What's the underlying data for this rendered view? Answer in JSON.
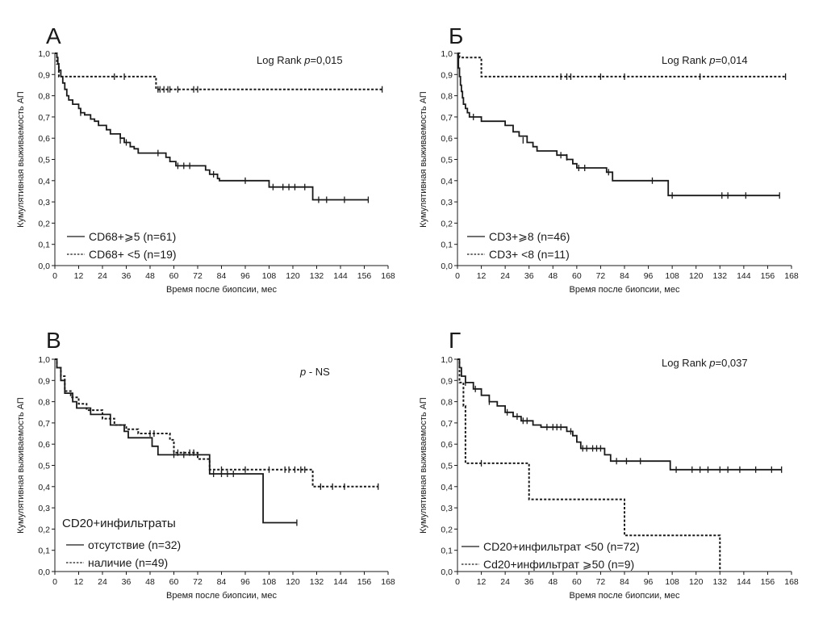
{
  "chart_data": [
    {
      "type": "line",
      "panel_label": "А",
      "title": "",
      "xlabel": "Время после биопсии, мес",
      "ylabel": "Кумулятивная выживаемость АП",
      "xlim": [
        0,
        168
      ],
      "ylim": [
        0,
        1
      ],
      "x_ticks": [
        "0",
        "12",
        "24",
        "36",
        "48",
        "60",
        "72",
        "84",
        "96",
        "108",
        "120",
        "132",
        "144",
        "156",
        "168"
      ],
      "y_ticks": [
        "0,0",
        "0,1",
        "0,2",
        "0,3",
        "0,4",
        "0,5",
        "0,6",
        "0,7",
        "0,8",
        "0,9",
        "1,0"
      ],
      "annotation": "Log Rank p=0,015",
      "grid": false,
      "legend_position": "bottom-left",
      "legend_heading": "",
      "series": [
        {
          "name": "CD68+⩾5 (n=61)",
          "style": "solid",
          "steps": [
            [
              0,
              1.0
            ],
            [
              1,
              0.98
            ],
            [
              1.5,
              0.95
            ],
            [
              2,
              0.92
            ],
            [
              3,
              0.89
            ],
            [
              4,
              0.86
            ],
            [
              5,
              0.83
            ],
            [
              6,
              0.8
            ],
            [
              7,
              0.78
            ],
            [
              9,
              0.76
            ],
            [
              12,
              0.74
            ],
            [
              13,
              0.72
            ],
            [
              15,
              0.71
            ],
            [
              18,
              0.69
            ],
            [
              20,
              0.68
            ],
            [
              22,
              0.66
            ],
            [
              26,
              0.64
            ],
            [
              28,
              0.62
            ],
            [
              33,
              0.6
            ],
            [
              35,
              0.58
            ],
            [
              38,
              0.56
            ],
            [
              40,
              0.55
            ],
            [
              42,
              0.53
            ],
            [
              56,
              0.51
            ],
            [
              58,
              0.49
            ],
            [
              61,
              0.47
            ],
            [
              76,
              0.45
            ],
            [
              78,
              0.43
            ],
            [
              82,
              0.41
            ],
            [
              83,
              0.4
            ],
            [
              108,
              0.37
            ],
            [
              130,
              0.31
            ],
            [
              158,
              0.31
            ]
          ],
          "censors": [
            [
              13,
              0.72
            ],
            [
              33,
              0.59
            ],
            [
              36,
              0.58
            ],
            [
              52,
              0.53
            ],
            [
              62,
              0.47
            ],
            [
              65,
              0.47
            ],
            [
              68,
              0.47
            ],
            [
              80,
              0.43
            ],
            [
              96,
              0.4
            ],
            [
              110,
              0.37
            ],
            [
              115,
              0.37
            ],
            [
              118,
              0.37
            ],
            [
              121,
              0.37
            ],
            [
              126,
              0.37
            ],
            [
              133,
              0.31
            ],
            [
              137,
              0.31
            ],
            [
              146,
              0.31
            ],
            [
              158,
              0.31
            ]
          ]
        },
        {
          "name": "CD68+ <5 (n=19)",
          "style": "dashed",
          "steps": [
            [
              0,
              1.0
            ],
            [
              1,
              0.95
            ],
            [
              2,
              0.89
            ],
            [
              51,
              0.83
            ],
            [
              165,
              0.83
            ]
          ],
          "censors": [
            [
              30,
              0.89
            ],
            [
              35,
              0.89
            ],
            [
              52,
              0.83
            ],
            [
              53,
              0.83
            ],
            [
              55,
              0.83
            ],
            [
              57,
              0.83
            ],
            [
              58,
              0.83
            ],
            [
              62,
              0.83
            ],
            [
              70,
              0.83
            ],
            [
              72,
              0.83
            ],
            [
              165,
              0.83
            ]
          ]
        }
      ]
    },
    {
      "type": "line",
      "panel_label": "Б",
      "title": "",
      "xlabel": "Время после биопсии, мес",
      "ylabel": "Кумулятивная выживаемость АП",
      "xlim": [
        0,
        168
      ],
      "ylim": [
        0,
        1
      ],
      "x_ticks": [
        "0",
        "12",
        "24",
        "36",
        "48",
        "60",
        "72",
        "84",
        "96",
        "108",
        "120",
        "132",
        "144",
        "156",
        "168"
      ],
      "y_ticks": [
        "0,0",
        "0,1",
        "0,2",
        "0,3",
        "0,4",
        "0,5",
        "0,6",
        "0,7",
        "0,8",
        "0,9",
        "1,0"
      ],
      "annotation": "Log Rank p=0,014",
      "grid": false,
      "legend_position": "bottom-left",
      "legend_heading": "",
      "series": [
        {
          "name": "CD3+⩾8 (n=46)",
          "style": "solid",
          "steps": [
            [
              0,
              1.0
            ],
            [
              0.5,
              0.93
            ],
            [
              1,
              0.89
            ],
            [
              1.5,
              0.85
            ],
            [
              2,
              0.82
            ],
            [
              2.5,
              0.79
            ],
            [
              3,
              0.76
            ],
            [
              4,
              0.74
            ],
            [
              5,
              0.72
            ],
            [
              6,
              0.7
            ],
            [
              12,
              0.68
            ],
            [
              24,
              0.66
            ],
            [
              28,
              0.63
            ],
            [
              31,
              0.61
            ],
            [
              35,
              0.58
            ],
            [
              38,
              0.56
            ],
            [
              40,
              0.54
            ],
            [
              50,
              0.52
            ],
            [
              55,
              0.5
            ],
            [
              58,
              0.48
            ],
            [
              60,
              0.46
            ],
            [
              75,
              0.44
            ],
            [
              78,
              0.4
            ],
            [
              106,
              0.33
            ],
            [
              162,
              0.33
            ]
          ],
          "censors": [
            [
              8,
              0.7
            ],
            [
              33,
              0.59
            ],
            [
              52,
              0.52
            ],
            [
              55,
              0.51
            ],
            [
              61,
              0.46
            ],
            [
              64,
              0.46
            ],
            [
              76,
              0.44
            ],
            [
              98,
              0.4
            ],
            [
              108,
              0.33
            ],
            [
              133,
              0.33
            ],
            [
              136,
              0.33
            ],
            [
              145,
              0.33
            ],
            [
              162,
              0.33
            ]
          ]
        },
        {
          "name": "CD3+ <8 (n=11)",
          "style": "dashed",
          "steps": [
            [
              0,
              1.0
            ],
            [
              1,
              0.98
            ],
            [
              12,
              0.89
            ],
            [
              165,
              0.89
            ]
          ],
          "censors": [
            [
              52,
              0.89
            ],
            [
              55,
              0.89
            ],
            [
              57,
              0.89
            ],
            [
              72,
              0.89
            ],
            [
              84,
              0.89
            ],
            [
              122,
              0.89
            ],
            [
              165,
              0.89
            ]
          ]
        }
      ]
    },
    {
      "type": "line",
      "panel_label": "В",
      "title": "",
      "xlabel": "Время после биопсии, мес",
      "ylabel": "Кумулятивная выживаемость АП",
      "xlim": [
        0,
        168
      ],
      "ylim": [
        0,
        1
      ],
      "x_ticks": [
        "0",
        "12",
        "24",
        "36",
        "48",
        "60",
        "72",
        "84",
        "96",
        "108",
        "120",
        "132",
        "144",
        "156",
        "168"
      ],
      "y_ticks": [
        "0,0",
        "0,1",
        "0,2",
        "0,3",
        "0,4",
        "0,5",
        "0,6",
        "0,7",
        "0,8",
        "0,9",
        "1,0"
      ],
      "annotation": "p - NS",
      "grid": false,
      "legend_position": "bottom-left",
      "legend_heading": "CD20+инфильтраты",
      "series": [
        {
          "name": "отсутствие (n=32)",
          "style": "solid",
          "steps": [
            [
              0,
              1.0
            ],
            [
              1,
              0.96
            ],
            [
              3,
              0.9
            ],
            [
              5,
              0.84
            ],
            [
              9,
              0.8
            ],
            [
              11,
              0.77
            ],
            [
              18,
              0.74
            ],
            [
              28,
              0.69
            ],
            [
              35,
              0.66
            ],
            [
              37,
              0.63
            ],
            [
              49,
              0.59
            ],
            [
              52,
              0.55
            ],
            [
              78,
              0.46
            ],
            [
              105,
              0.23
            ],
            [
              122,
              0.23
            ]
          ],
          "censors": [
            [
              60,
              0.55
            ],
            [
              65,
              0.55
            ],
            [
              80,
              0.46
            ],
            [
              84,
              0.46
            ],
            [
              87,
              0.46
            ],
            [
              90,
              0.46
            ],
            [
              122,
              0.23
            ]
          ]
        },
        {
          "name": "наличие (n=49)",
          "style": "dashed",
          "steps": [
            [
              0,
              1.0
            ],
            [
              1,
              0.96
            ],
            [
              3,
              0.92
            ],
            [
              5,
              0.85
            ],
            [
              8,
              0.82
            ],
            [
              12,
              0.79
            ],
            [
              16,
              0.76
            ],
            [
              24,
              0.72
            ],
            [
              30,
              0.69
            ],
            [
              36,
              0.67
            ],
            [
              42,
              0.65
            ],
            [
              58,
              0.62
            ],
            [
              60,
              0.56
            ],
            [
              72,
              0.53
            ],
            [
              78,
              0.48
            ],
            [
              130,
              0.4
            ],
            [
              163,
              0.4
            ]
          ],
          "censors": [
            [
              48,
              0.65
            ],
            [
              50,
              0.65
            ],
            [
              62,
              0.56
            ],
            [
              68,
              0.56
            ],
            [
              70,
              0.56
            ],
            [
              84,
              0.48
            ],
            [
              96,
              0.48
            ],
            [
              108,
              0.48
            ],
            [
              116,
              0.48
            ],
            [
              118,
              0.48
            ],
            [
              121,
              0.48
            ],
            [
              124,
              0.48
            ],
            [
              126,
              0.48
            ],
            [
              134,
              0.4
            ],
            [
              140,
              0.4
            ],
            [
              146,
              0.4
            ],
            [
              163,
              0.4
            ]
          ]
        }
      ]
    },
    {
      "type": "line",
      "panel_label": "Г",
      "title": "",
      "xlabel": "Время после биопсии, мес",
      "ylabel": "Кумулятивная выживаемость АП",
      "xlim": [
        0,
        168
      ],
      "ylim": [
        0,
        1
      ],
      "x_ticks": [
        "0",
        "12",
        "24",
        "36",
        "48",
        "60",
        "72",
        "84",
        "96",
        "108",
        "120",
        "132",
        "144",
        "156",
        "168"
      ],
      "y_ticks": [
        "0,0",
        "0,1",
        "0,2",
        "0,3",
        "0,4",
        "0,5",
        "0,6",
        "0,7",
        "0,8",
        "0,9",
        "1,0"
      ],
      "annotation": "Log Rank p=0,037",
      "grid": false,
      "legend_position": "bottom-left",
      "legend_heading": "",
      "series": [
        {
          "name": "CD20+инфильтрат <50 (n=72)",
          "style": "solid",
          "steps": [
            [
              0,
              1.0
            ],
            [
              1,
              0.96
            ],
            [
              2,
              0.92
            ],
            [
              4,
              0.89
            ],
            [
              8,
              0.86
            ],
            [
              12,
              0.83
            ],
            [
              16,
              0.8
            ],
            [
              20,
              0.78
            ],
            [
              24,
              0.75
            ],
            [
              28,
              0.73
            ],
            [
              32,
              0.71
            ],
            [
              38,
              0.69
            ],
            [
              42,
              0.68
            ],
            [
              55,
              0.66
            ],
            [
              58,
              0.64
            ],
            [
              60,
              0.61
            ],
            [
              62,
              0.58
            ],
            [
              74,
              0.55
            ],
            [
              77,
              0.52
            ],
            [
              107,
              0.48
            ],
            [
              163,
              0.48
            ]
          ],
          "censors": [
            [
              4,
              0.89
            ],
            [
              9,
              0.86
            ],
            [
              16,
              0.8
            ],
            [
              25,
              0.75
            ],
            [
              30,
              0.73
            ],
            [
              33,
              0.71
            ],
            [
              35,
              0.71
            ],
            [
              45,
              0.68
            ],
            [
              48,
              0.68
            ],
            [
              50,
              0.68
            ],
            [
              52,
              0.68
            ],
            [
              57,
              0.66
            ],
            [
              63,
              0.58
            ],
            [
              65,
              0.58
            ],
            [
              68,
              0.58
            ],
            [
              70,
              0.58
            ],
            [
              72,
              0.58
            ],
            [
              80,
              0.52
            ],
            [
              85,
              0.52
            ],
            [
              92,
              0.52
            ],
            [
              110,
              0.48
            ],
            [
              118,
              0.48
            ],
            [
              122,
              0.48
            ],
            [
              126,
              0.48
            ],
            [
              132,
              0.48
            ],
            [
              136,
              0.48
            ],
            [
              142,
              0.48
            ],
            [
              150,
              0.48
            ],
            [
              158,
              0.48
            ],
            [
              163,
              0.48
            ]
          ]
        },
        {
          "name": "Cd20+инфильтрат ⩾50 (n=9)",
          "style": "dashed",
          "steps": [
            [
              0,
              1.0
            ],
            [
              1,
              0.89
            ],
            [
              3,
              0.78
            ],
            [
              4,
              0.51
            ],
            [
              36,
              0.34
            ],
            [
              84,
              0.17
            ],
            [
              132,
              0.0
            ]
          ],
          "censors": [
            [
              12,
              0.51
            ]
          ]
        }
      ]
    }
  ]
}
